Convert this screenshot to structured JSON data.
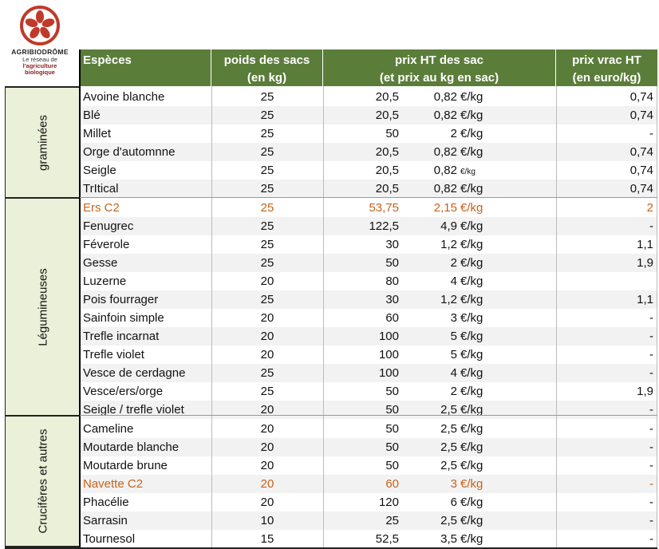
{
  "logo": {
    "brand": "AGRIBIODRÔME",
    "tag_line1": "Le réseau de",
    "tag_line2": "l'agriculture",
    "tag_line3": "biologique"
  },
  "headers": {
    "species": "Espèces",
    "weight_l1": "poids des sacs",
    "weight_l2": "(en kg)",
    "price_l1": "prix HT des sac",
    "price_l2": "(et prix au kg en sac)",
    "bulk_l1": "prix vrac HT",
    "bulk_l2": "(en euro/kg)"
  },
  "groups": [
    {
      "label": "graminées"
    },
    {
      "label": "Légumineuses"
    },
    {
      "label": "Crucifères et autres"
    }
  ],
  "rows": [
    {
      "species": "Avoine blanche",
      "weight": "25",
      "price": "20,5",
      "per_kg": "0,82",
      "unit": "€/kg",
      "bulk": "0,74"
    },
    {
      "species": "Blé",
      "weight": "25",
      "price": "20,5",
      "per_kg": "0,82",
      "unit": "€/kg",
      "bulk": "0,74"
    },
    {
      "species": "Millet",
      "weight": "25",
      "price": "50",
      "per_kg": "2",
      "unit": "€/kg",
      "bulk": "-"
    },
    {
      "species": "Orge d'automnne",
      "weight": "25",
      "price": "20,5",
      "per_kg": "0,82",
      "unit": "€/kg",
      "bulk": "0,74"
    },
    {
      "species": "Seigle",
      "weight": "25",
      "price": "20,5",
      "per_kg": "0,82",
      "unit": "€/kg",
      "bulk": "0,74"
    },
    {
      "species": "TrItical",
      "weight": "25",
      "price": "20,5",
      "per_kg": "0,82",
      "unit": "€/kg",
      "bulk": "0,74"
    },
    {
      "species": "Ers C2",
      "weight": "25",
      "price": "53,75",
      "per_kg": "2,15",
      "unit": "€/kg",
      "bulk": "2"
    },
    {
      "species": "Fenugrec",
      "weight": "25",
      "price": "122,5",
      "per_kg": "4,9",
      "unit": "€/kg",
      "bulk": "-"
    },
    {
      "species": "Féverole",
      "weight": "25",
      "price": "30",
      "per_kg": "1,2",
      "unit": "€/kg",
      "bulk": "1,1"
    },
    {
      "species": "Gesse",
      "weight": "25",
      "price": "50",
      "per_kg": "2",
      "unit": "€/kg",
      "bulk": "1,9"
    },
    {
      "species": "Luzerne",
      "weight": "20",
      "price": "80",
      "per_kg": "4",
      "unit": "€/kg",
      "bulk": ""
    },
    {
      "species": "Pois fourrager",
      "weight": "25",
      "price": "30",
      "per_kg": "1,2",
      "unit": "€/kg",
      "bulk": "1,1"
    },
    {
      "species": "Sainfoin simple",
      "weight": "20",
      "price": "60",
      "per_kg": "3",
      "unit": "€/kg",
      "bulk": "-"
    },
    {
      "species": "Trefle incarnat",
      "weight": "20",
      "price": "100",
      "per_kg": "5",
      "unit": "€/kg",
      "bulk": "-"
    },
    {
      "species": "Trefle violet",
      "weight": "20",
      "price": "100",
      "per_kg": "5",
      "unit": "€/kg",
      "bulk": "-"
    },
    {
      "species": "Vesce de cerdagne",
      "weight": "25",
      "price": "100",
      "per_kg": "4",
      "unit": "€/kg",
      "bulk": "-"
    },
    {
      "species": "Vesce/ers/orge",
      "weight": "25",
      "price": "50",
      "per_kg": "2",
      "unit": "€/kg",
      "bulk": "1,9"
    },
    {
      "species": "Seigle / trefle violet",
      "weight": "20",
      "price": "50",
      "per_kg": "2,5",
      "unit": "€/kg",
      "bulk": "-"
    },
    {
      "species": "Cameline",
      "weight": "20",
      "price": "50",
      "per_kg": "2,5",
      "unit": "€/kg",
      "bulk": "-"
    },
    {
      "species": "Moutarde blanche",
      "weight": "20",
      "price": "50",
      "per_kg": "2,5",
      "unit": "€/kg",
      "bulk": "-"
    },
    {
      "species": "Moutarde brune",
      "weight": "20",
      "price": "50",
      "per_kg": "2,5",
      "unit": "€/kg",
      "bulk": "-"
    },
    {
      "species": "Navette C2",
      "weight": "20",
      "price": "60",
      "per_kg": "3",
      "unit": "€/kg",
      "bulk": "-"
    },
    {
      "species": "Phacélie",
      "weight": "20",
      "price": "120",
      "per_kg": "6",
      "unit": "€/kg",
      "bulk": "-"
    },
    {
      "species": "Sarrasin",
      "weight": "10",
      "price": "25",
      "per_kg": "2,5",
      "unit": "€/kg",
      "bulk": "-"
    },
    {
      "species": "Tournesol",
      "weight": "15",
      "price": "52,5",
      "per_kg": "3,5",
      "unit": "€/kg",
      "bulk": "-"
    }
  ],
  "colors": {
    "header_bg": "#5b7d3a",
    "highlight": "#c8621a",
    "group_bg": "#ebf0d9",
    "alt_row": "#f2f2f2",
    "logo_red": "#c0392b"
  }
}
